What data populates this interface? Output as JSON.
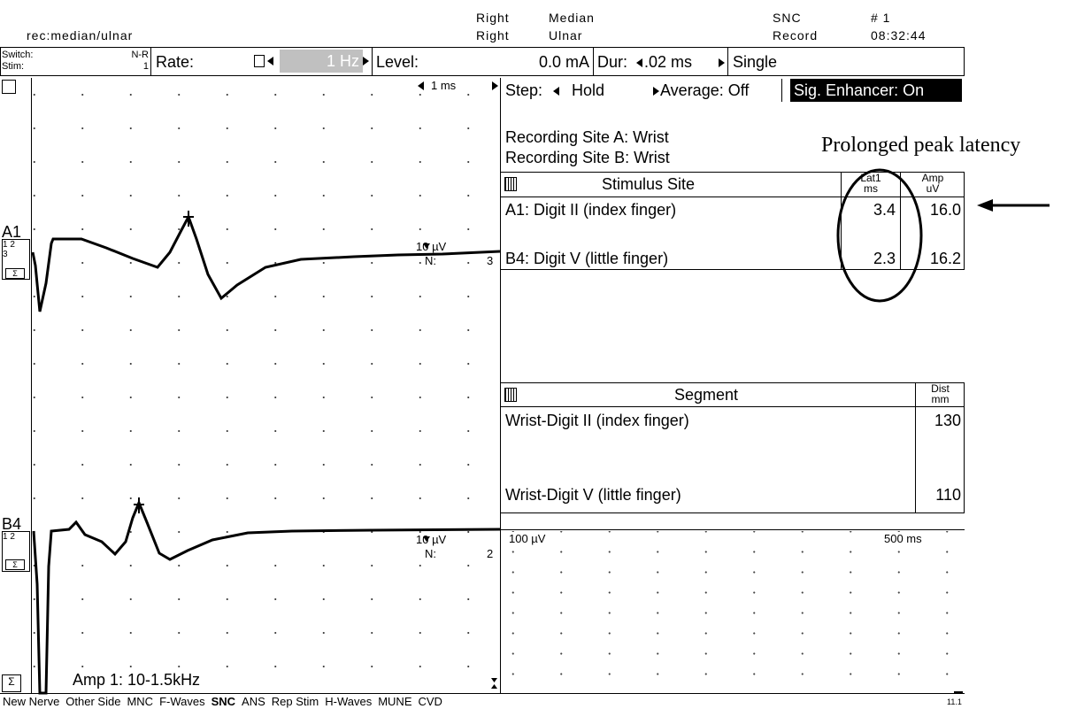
{
  "header": {
    "label": "rec:median/ulnar",
    "side": [
      "Right",
      "Right"
    ],
    "nerve": [
      "Median",
      "Ulnar"
    ],
    "mode": [
      "SNC",
      "Record"
    ],
    "number": "# 1",
    "time": "08:32:44"
  },
  "toolbar": {
    "switch": "Switch:",
    "stim": "Stim:",
    "switch_value": "N-R",
    "stim_value": "1",
    "rate_label": "Rate:",
    "rate": "1 Hz",
    "level_label": "Level:",
    "level": "0.0 mA",
    "dur_label": "Dur:",
    "dur": ".02 ms",
    "single": "Single"
  },
  "traces": {
    "timebase": "1 ms",
    "amp": "Amp 1: 10-1.5kHz",
    "channels": [
      {
        "name": "A1",
        "inputs": "1 2",
        "extra": "3",
        "sensitivity": "10 µV",
        "n_label": "N:",
        "n": "3"
      },
      {
        "name": "B4",
        "inputs": "1 2",
        "sensitivity": "10 µV",
        "n_label": "N:",
        "n": "2"
      }
    ]
  },
  "controls": {
    "step_label": "Step:",
    "step": "Hold",
    "average": "Average: Off",
    "enhancer": "Sig. Enhancer: On"
  },
  "recording_sites": [
    "Recording Site A: Wrist",
    "Recording Site B: Wrist"
  ],
  "annotation": "Prolonged peak latency",
  "stimulus_table": {
    "columns": [
      {
        "label": "Stimulus Site"
      },
      {
        "label": "Lat1",
        "unit": "ms"
      },
      {
        "label": "Amp",
        "unit": "uV"
      }
    ],
    "rows": [
      [
        "A1: Digit II (index finger)",
        "3.4",
        "16.0"
      ],
      [
        "B4: Digit V (little finger)",
        "2.3",
        "16.2"
      ]
    ]
  },
  "segment_table": {
    "columns": [
      {
        "label": "Segment"
      },
      {
        "label": "Dist",
        "unit": "mm"
      }
    ],
    "rows": [
      [
        "Wrist-Digit II (index finger)",
        "130"
      ],
      [
        "Wrist-Digit V (little finger)",
        "110"
      ]
    ]
  },
  "scope": {
    "sensitivity": "100 µV",
    "timebase": "500 ms"
  },
  "menu": [
    "New Nerve",
    "Other Side",
    "MNC",
    "F-Waves",
    "SNC",
    "ANS",
    "Rep Stim",
    "H-Waves",
    "MUNE",
    "CVD"
  ],
  "menu_active": 4,
  "version": "11.1"
}
